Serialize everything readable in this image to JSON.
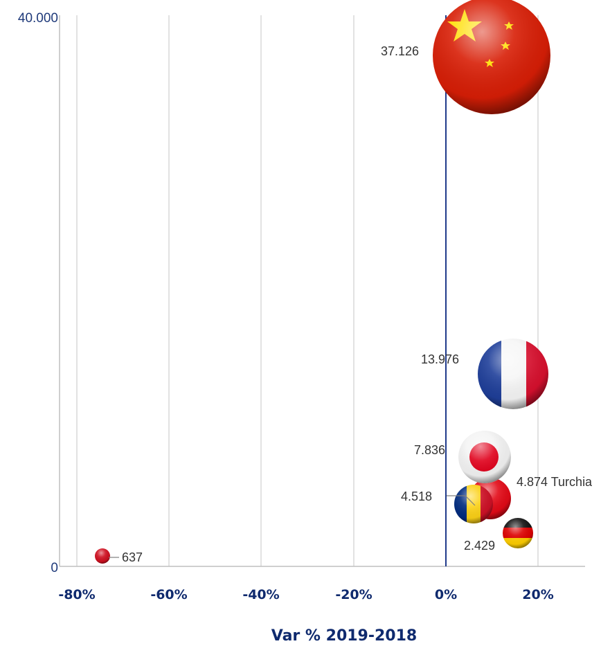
{
  "chart_data": {
    "type": "scatter",
    "title": "",
    "xlabel": "Var % 2019-2018",
    "ylabel": "",
    "xlim": [
      -80,
      30
    ],
    "ylim": [
      0,
      40000
    ],
    "grid": true,
    "x_tick_labels": [
      "-80%",
      "-60%",
      "-40%",
      "-20%",
      "0%",
      "20%"
    ],
    "x_tick_values": [
      -80,
      -60,
      -40,
      -20,
      0,
      20
    ],
    "y_tick_labels": [
      "0",
      "40.000"
    ],
    "y_tick_values": [
      0,
      40000
    ],
    "points": [
      {
        "flag": "china-flag",
        "label": "37.126",
        "x": 10,
        "y": 37126
      },
      {
        "flag": "france-flag",
        "label": "13.976",
        "x": 15,
        "y": 13976
      },
      {
        "flag": "japan-flag",
        "label": "7.836",
        "x": 8,
        "y": 7836
      },
      {
        "flag": "turkey-flag",
        "label": "4.874 Turchia",
        "x": 11,
        "y": 4874
      },
      {
        "flag": "romania-flag",
        "label": "4.518",
        "x": 7,
        "y": 4518
      },
      {
        "flag": "germany-flag",
        "label": "2.429",
        "x": 16,
        "y": 2429
      },
      {
        "flag": "red-flag",
        "label": "637",
        "x": -75,
        "y": 637
      }
    ]
  }
}
